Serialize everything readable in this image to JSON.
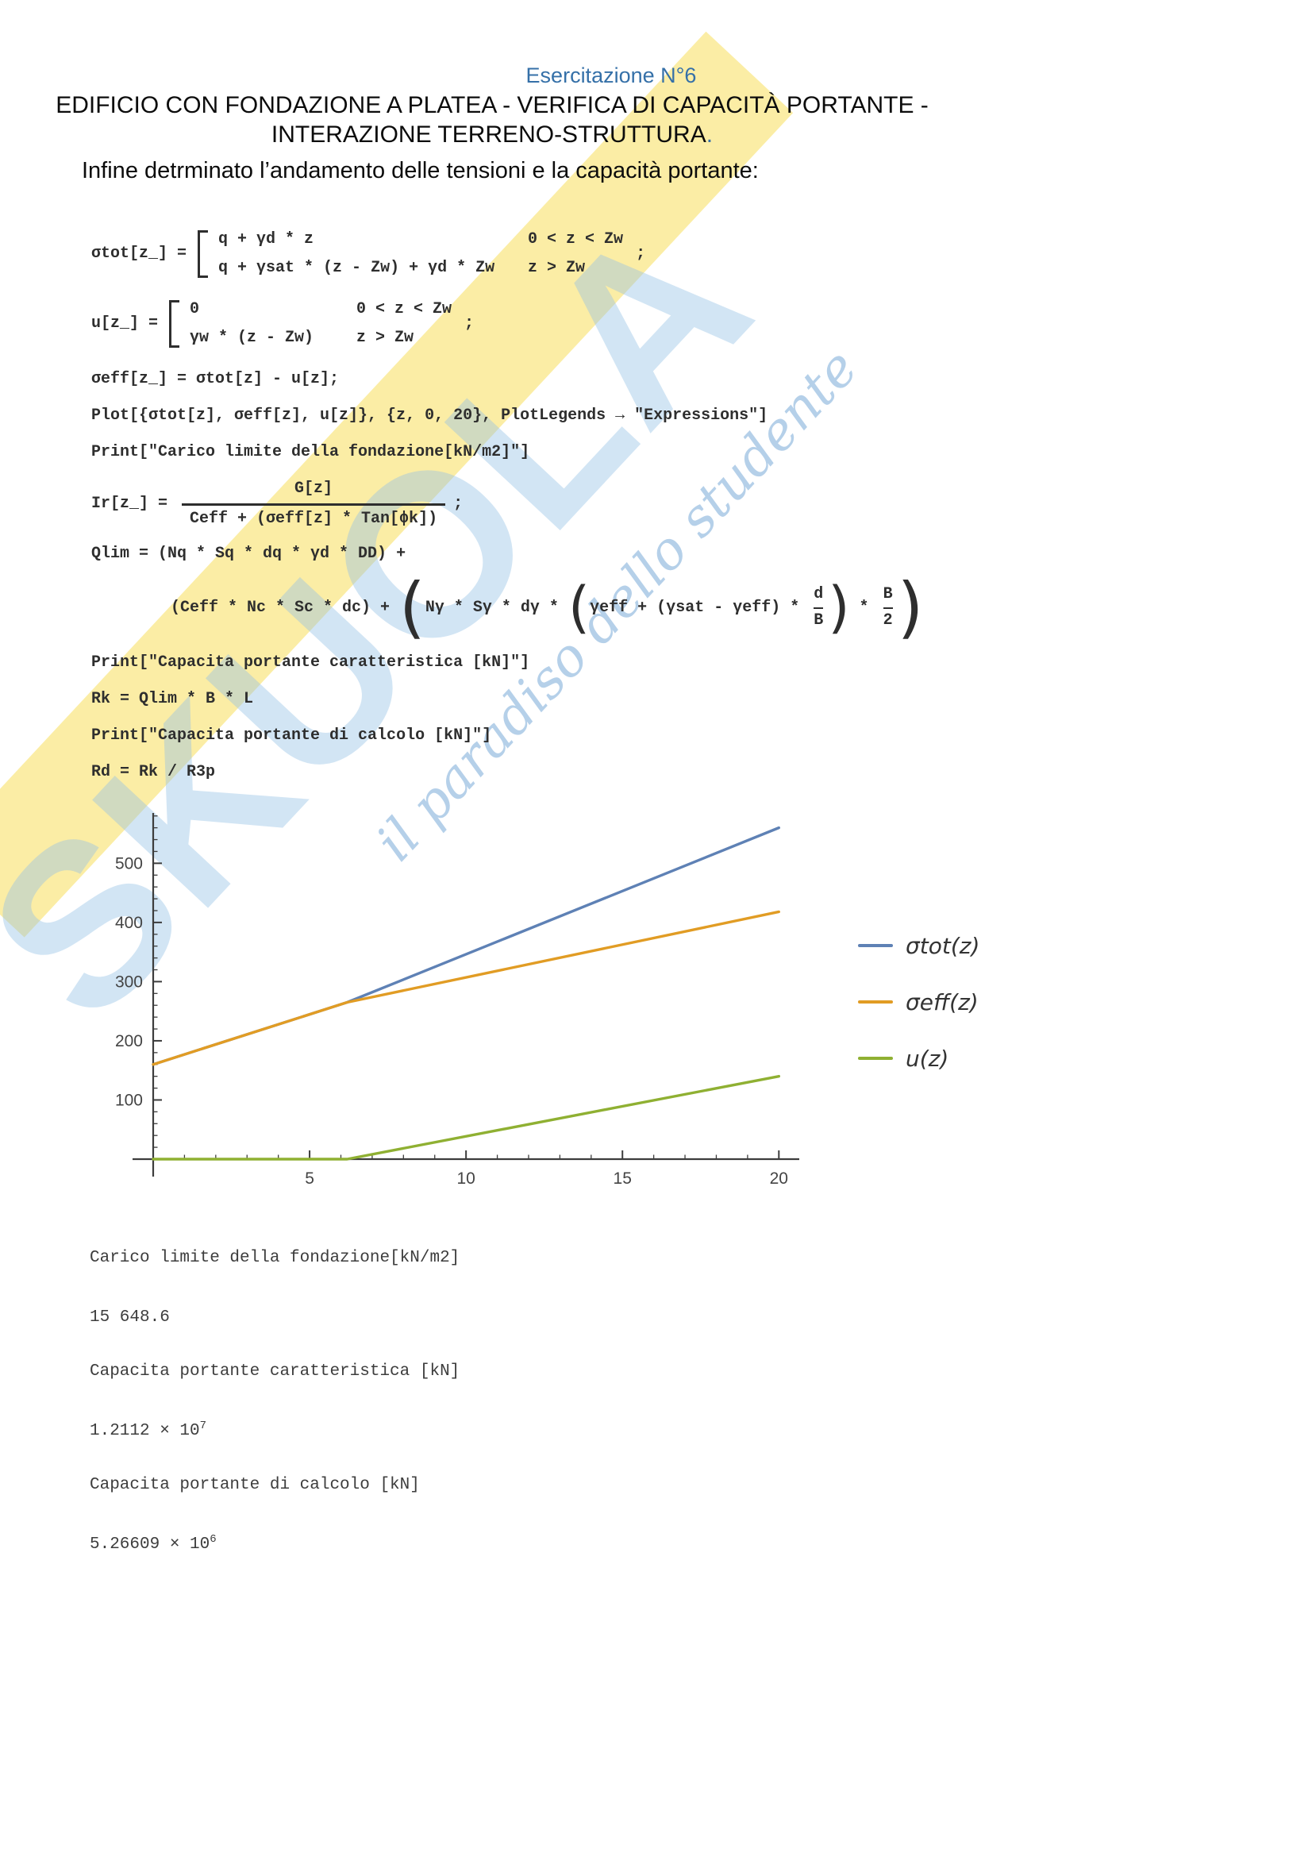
{
  "page": {
    "header": "Esercitazione N°6",
    "title_line1": "EDIFICIO CON FONDAZIONE A PLATEA  - VERIFICA DI CAPACITÀ PORTANTE -",
    "title_line2": "INTERAZIONE TERRENO-STRUTTURA",
    "title_end_dot": ".",
    "intro": "Infine detrminato l’andamento delle tensioni e la capacità portante:",
    "accent_blue": "#3570a8"
  },
  "watermark": {
    "brand": "SKUOLA",
    "tagline": "il paradiso dello studente"
  },
  "code": {
    "sigma_tot": {
      "lhs": "σtot[z_] =",
      "rows": [
        {
          "expr": "q + γd * z",
          "cond": "0 < z < Zw"
        },
        {
          "expr": "q + γsat * (z - Zw) + γd * Zw",
          "cond": "z > Zw"
        }
      ],
      "semi": ";"
    },
    "u": {
      "lhs": "u[z_] =",
      "rows": [
        {
          "expr": "0",
          "cond": "0 < z < Zw"
        },
        {
          "expr": "γw * (z - Zw)",
          "cond": "z > Zw"
        }
      ],
      "semi": ";"
    },
    "sigma_eff": "σeff[z_] = σtot[z] - u[z];",
    "plot_line": "Plot[{σtot[z], σeff[z], u[z]}, {z, 0, 20}, PlotLegends → \"Expressions\"]",
    "print_carico": "Print[\"Carico limite della fondazione[kN/m2]\"]",
    "ir": {
      "lhs": "Ir[z_] =",
      "numerator": "G[z]",
      "denominator": "Ceff + (σeff[z] * Tan[ϕk])",
      "semi": ";"
    },
    "qlim_line1": "Qlim = (Nq * Sq * dq * γd * DD) +",
    "qlim2": {
      "prefix": "(Ceff * Nc * Sc * dc) + ",
      "inner1": "Nγ * Sγ * dγ * ",
      "inner2": "γeff + (γsat - γeff) * ",
      "frac1_num": "d",
      "frac1_den": "B",
      "star": " * ",
      "frac2_num": "B",
      "frac2_den": "2"
    },
    "print_caratt": "Print[\"Capacita portante caratteristica [kN]\"]",
    "rk": "Rk = Qlim * B * L",
    "print_calcolo": "Print[\"Capacita portante di calcolo [kN]\"]",
    "rd": "Rd = Rk / R3p"
  },
  "chart_data": {
    "type": "line",
    "title": "",
    "xlabel": "",
    "ylabel": "",
    "xlim": [
      0,
      20.5
    ],
    "ylim": [
      0,
      585
    ],
    "x_ticks": [
      5,
      10,
      15,
      20
    ],
    "y_ticks": [
      100,
      200,
      300,
      400,
      500
    ],
    "x_minor_step": 1,
    "y_minor_step": 20,
    "grid": false,
    "legend_position": "right",
    "axis_color": "#3d3d3d",
    "tick_label_color": "#444444",
    "series": [
      {
        "name": "σtot(z)",
        "color": "#5e81b5",
        "points": [
          [
            0,
            160
          ],
          [
            6.2,
            265
          ],
          [
            20,
            560
          ]
        ]
      },
      {
        "name": "σeff(z)",
        "color": "#e19c24",
        "points": [
          [
            0,
            160
          ],
          [
            6.2,
            265
          ],
          [
            20,
            418
          ]
        ]
      },
      {
        "name": "u(z)",
        "color": "#8fb032",
        "points": [
          [
            0,
            0
          ],
          [
            6.2,
            0
          ],
          [
            20,
            140
          ]
        ]
      }
    ]
  },
  "outputs": {
    "lines": [
      {
        "text": "Carico limite della fondazione[kN/m2]",
        "sup": ""
      },
      {
        "text": "15 648.6",
        "sup": ""
      },
      {
        "text": "Capacita portante caratteristica [kN]",
        "sup": ""
      },
      {
        "text": "1.2112 × 10",
        "sup": "7"
      },
      {
        "text": "Capacita portante di calcolo [kN]",
        "sup": ""
      },
      {
        "text": "5.26609 × 10",
        "sup": "6"
      }
    ]
  }
}
